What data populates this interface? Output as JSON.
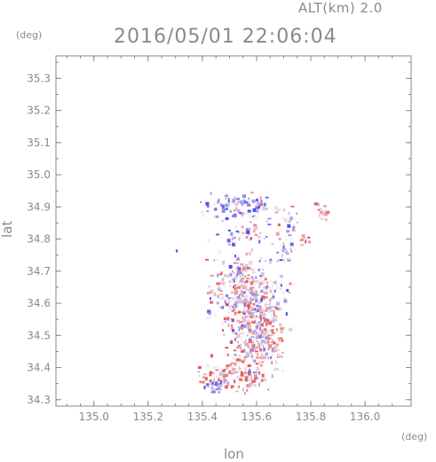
{
  "header": {
    "alt_label": "ALT(km) 2.0",
    "timestamp": "2016/05/01 22:06:04"
  },
  "axes": {
    "x_unit": "(deg)",
    "y_unit": "(deg)",
    "x_label": "lon",
    "y_label": "lat"
  },
  "chart_data": {
    "type": "heatmap",
    "xlabel": "lon",
    "ylabel": "lat",
    "xlim": [
      134.86,
      136.17
    ],
    "ylim": [
      34.28,
      35.37
    ],
    "x_ticks": [
      "135.0",
      "135.2",
      "135.4",
      "135.6",
      "135.8",
      "136.0"
    ],
    "y_ticks": [
      "34.3",
      "34.4",
      "34.5",
      "34.6",
      "34.7",
      "34.8",
      "34.9",
      "35.0",
      "35.1",
      "35.2",
      "35.3"
    ],
    "color_scale": {
      "negative": "#5a5ae0",
      "positive": "#e05a5a",
      "neutral": "#f4f0f4"
    },
    "grid": false,
    "clusters": [
      {
        "lon": 135.5,
        "lat": 34.9,
        "sx": 0.05,
        "sy": 0.02,
        "n": 60,
        "bias": -0.3
      },
      {
        "lon": 135.6,
        "lat": 34.9,
        "sx": 0.04,
        "sy": 0.02,
        "n": 40,
        "bias": -0.2
      },
      {
        "lon": 135.55,
        "lat": 34.82,
        "sx": 0.05,
        "sy": 0.02,
        "n": 50,
        "bias": -0.2
      },
      {
        "lon": 135.7,
        "lat": 34.83,
        "sx": 0.03,
        "sy": 0.03,
        "n": 30,
        "bias": -0.1
      },
      {
        "lon": 135.83,
        "lat": 34.89,
        "sx": 0.02,
        "sy": 0.015,
        "n": 15,
        "bias": 0.3
      },
      {
        "lon": 135.78,
        "lat": 34.8,
        "sx": 0.015,
        "sy": 0.01,
        "n": 8,
        "bias": 0.4
      },
      {
        "lon": 135.55,
        "lat": 34.66,
        "sx": 0.07,
        "sy": 0.05,
        "n": 260,
        "bias": 0.0
      },
      {
        "lon": 135.58,
        "lat": 34.58,
        "sx": 0.05,
        "sy": 0.04,
        "n": 220,
        "bias": 0.1
      },
      {
        "lon": 135.6,
        "lat": 34.48,
        "sx": 0.05,
        "sy": 0.04,
        "n": 200,
        "bias": 0.2
      },
      {
        "lon": 135.52,
        "lat": 34.38,
        "sx": 0.06,
        "sy": 0.025,
        "n": 120,
        "bias": 0.4
      },
      {
        "lon": 135.44,
        "lat": 34.35,
        "sx": 0.02,
        "sy": 0.012,
        "n": 30,
        "bias": -0.1
      },
      {
        "lon": 135.7,
        "lat": 34.77,
        "sx": 0.015,
        "sy": 0.02,
        "n": 15,
        "bias": -0.2
      },
      {
        "lon": 135.3,
        "lat": 34.77,
        "sx": 0.004,
        "sy": 0.004,
        "n": 2,
        "bias": -0.5
      }
    ]
  }
}
